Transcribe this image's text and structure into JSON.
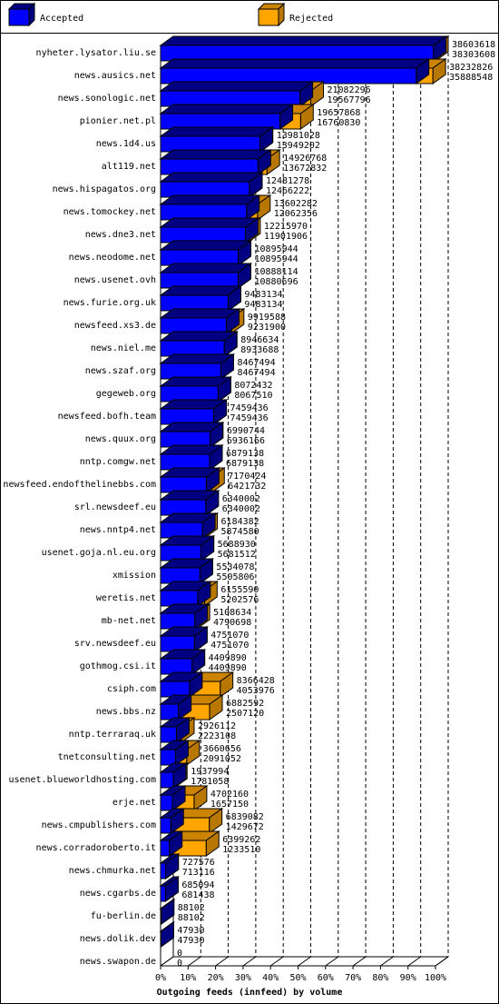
{
  "legend": [
    {
      "label": "Accepted",
      "color": "#0000ff"
    },
    {
      "label": "Rejected",
      "color": "#ffa500"
    }
  ],
  "chart_data": {
    "type": "bar",
    "orientation": "horizontal",
    "stacked": "overlay-3d",
    "xlabel": "Outgoing feeds (innfeed) by volume",
    "ylabel": "",
    "xlim": [
      0,
      100
    ],
    "x_ticks": [
      "0%",
      "10%",
      "20%",
      "30%",
      "40%",
      "50%",
      "60%",
      "70%",
      "80%",
      "90%",
      "100%"
    ],
    "grid": "vertical dashed",
    "legend_position": "top",
    "categories": [
      "nyheter.lysator.liu.se",
      "news.ausics.net",
      "news.sonologic.net",
      "pionier.net.pl",
      "news.1d4.us",
      "alt119.net",
      "news.hispagatos.org",
      "news.tomockey.net",
      "news.dne3.net",
      "news.neodome.net",
      "news.usenet.ovh",
      "news.furie.org.uk",
      "newsfeed.xs3.de",
      "news.niel.me",
      "news.szaf.org",
      "gegeweb.org",
      "newsfeed.bofh.team",
      "news.quux.org",
      "nntp.comgw.net",
      "newsfeed.endofthelinebbs.com",
      "srl.newsdeef.eu",
      "news.nntp4.net",
      "usenet.goja.nl.eu.org",
      "xmission",
      "weretis.net",
      "mb-net.net",
      "srv.newsdeef.eu",
      "gothmog.csi.it",
      "csiph.com",
      "news.bbs.nz",
      "nntp.terraraq.uk",
      "tnetconsulting.net",
      "usenet.blueworldhosting.com",
      "erje.net",
      "news.cmpublishers.com",
      "news.corradoroberto.it",
      "news.chmurka.net",
      "news.cgarbs.de",
      "fu-berlin.de",
      "news.dolik.dev",
      "news.swapon.de"
    ],
    "series": [
      {
        "name": "Accepted",
        "color": "#0000ff",
        "values": [
          "38303608",
          "35888548",
          "19567796",
          "16760830",
          "13949202",
          "13672832",
          "12466222",
          "12062356",
          "11901906",
          "10895944",
          "10880696",
          "9483134",
          "9231900",
          "8933688",
          "8467494",
          "8067510",
          "7459436",
          "6936166",
          "6879138",
          "6421732",
          "6340002",
          "5874580",
          "5681512",
          "5505806",
          "5202576",
          "4790698",
          "4751070",
          "4409890",
          "4053976",
          "2507120",
          "2223108",
          "2091052",
          "1781058",
          "1657150",
          "1429672",
          "1233510",
          "713116",
          "681438",
          "88102",
          "47930",
          "0"
        ]
      },
      {
        "name": "Rejected",
        "color": "#ffa500",
        "values": [
          "38603618",
          "38232826",
          "21082296",
          "19657868",
          "13981028",
          "14926768",
          "12481278",
          "13602282",
          "12215970",
          "10895944",
          "10888114",
          "9483134",
          "9919588",
          "8946634",
          "8467494",
          "8072432",
          "7459436",
          "6990744",
          "6879138",
          "7170424",
          "6340002",
          "6184382",
          "5688930",
          "5534078",
          "6155590",
          "5108634",
          "4751070",
          "4409890",
          "8366428",
          "6882592",
          "2926112",
          "3660656",
          "1937994",
          "4702160",
          "6839082",
          "6399262",
          "727576",
          "685094",
          "88102",
          "47930",
          "0"
        ]
      }
    ]
  }
}
